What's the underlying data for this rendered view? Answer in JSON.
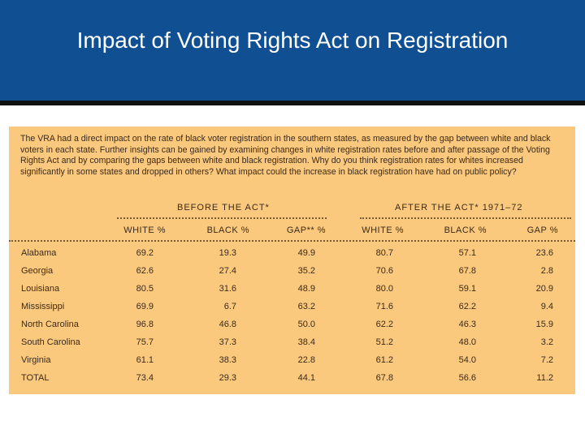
{
  "slide": {
    "title": "Impact of Voting Rights Act on Registration"
  },
  "intro_text": "The VRA had a direct impact on the rate of black voter registration in the southern states, as measured by the gap between white and black voters in each state. Further insights can be gained by examining changes in white registration rates before and after passage of the Voting Rights Act and by comparing the gaps between white and black registration. Why do you think registration rates for whites increased significantly in some states and dropped in others? What impact could the increase in black registration have had on public policy?",
  "table": {
    "group_before": "BEFORE THE ACT*",
    "group_after": "AFTER THE ACT* 1971–72",
    "columns": [
      "WHITE %",
      "BLACK %",
      "GAP** %",
      "WHITE %",
      "BLACK %",
      "GAP %"
    ],
    "rows": [
      {
        "state": "Alabama",
        "values": [
          "69.2",
          "19.3",
          "49.9",
          "80.7",
          "57.1",
          "23.6"
        ]
      },
      {
        "state": "Georgia",
        "values": [
          "62.6",
          "27.4",
          "35.2",
          "70.6",
          "67.8",
          "2.8"
        ]
      },
      {
        "state": "Louisiana",
        "values": [
          "80.5",
          "31.6",
          "48.9",
          "80.0",
          "59.1",
          "20.9"
        ]
      },
      {
        "state": "Mississippi",
        "values": [
          "69.9",
          "6.7",
          "63.2",
          "71.6",
          "62.2",
          "9.4"
        ]
      },
      {
        "state": "North Carolina",
        "values": [
          "96.8",
          "46.8",
          "50.0",
          "62.2",
          "46.3",
          "15.9"
        ]
      },
      {
        "state": "South Carolina",
        "values": [
          "75.7",
          "37.3",
          "38.4",
          "51.2",
          "48.0",
          "3.2"
        ]
      },
      {
        "state": "Virginia",
        "values": [
          "61.1",
          "38.3",
          "22.8",
          "61.2",
          "54.0",
          "7.2"
        ]
      },
      {
        "state": "TOTAL",
        "values": [
          "73.4",
          "29.3",
          "44.1",
          "67.8",
          "56.6",
          "11.2"
        ]
      }
    ]
  }
}
